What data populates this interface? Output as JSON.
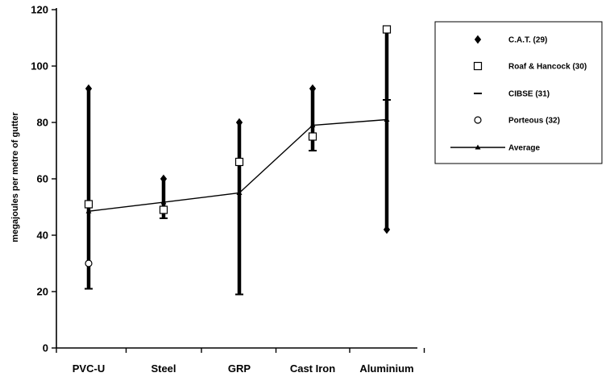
{
  "chart_data": {
    "type": "line",
    "title": "",
    "xlabel": "",
    "ylabel": "megajoules per metre of gutter",
    "ylim": [
      0,
      120
    ],
    "yticks": [
      0,
      20,
      40,
      60,
      80,
      100,
      120
    ],
    "categories": [
      "PVC-U",
      "Steel",
      "GRP",
      "Cast Iron",
      "Aluminium"
    ],
    "grid": false,
    "legend_position": "top-right",
    "series": [
      {
        "name": "C.A.T. (29)",
        "marker": "diamond",
        "values": [
          92,
          60,
          80,
          92,
          42
        ]
      },
      {
        "name": "Roaf & Hancock (30)",
        "marker": "square",
        "values": [
          51,
          49,
          66,
          75,
          113
        ]
      },
      {
        "name": "CIBSE (31)",
        "marker": "dash",
        "values": [
          21,
          46,
          19,
          70,
          88
        ]
      },
      {
        "name": "Porteous (32)",
        "marker": "circle",
        "values": [
          30,
          null,
          null,
          null,
          null
        ]
      },
      {
        "name": "Average",
        "marker": "triangle-line",
        "values": [
          48.5,
          51.7,
          55,
          79,
          81
        ]
      }
    ],
    "ranges": [
      {
        "category": "PVC-U",
        "low": 21,
        "high": 92
      },
      {
        "category": "Steel",
        "low": 46,
        "high": 60
      },
      {
        "category": "GRP",
        "low": 19,
        "high": 80
      },
      {
        "category": "Cast Iron",
        "low": 70,
        "high": 92
      },
      {
        "category": "Aluminium",
        "low": 42,
        "high": 113
      }
    ]
  }
}
